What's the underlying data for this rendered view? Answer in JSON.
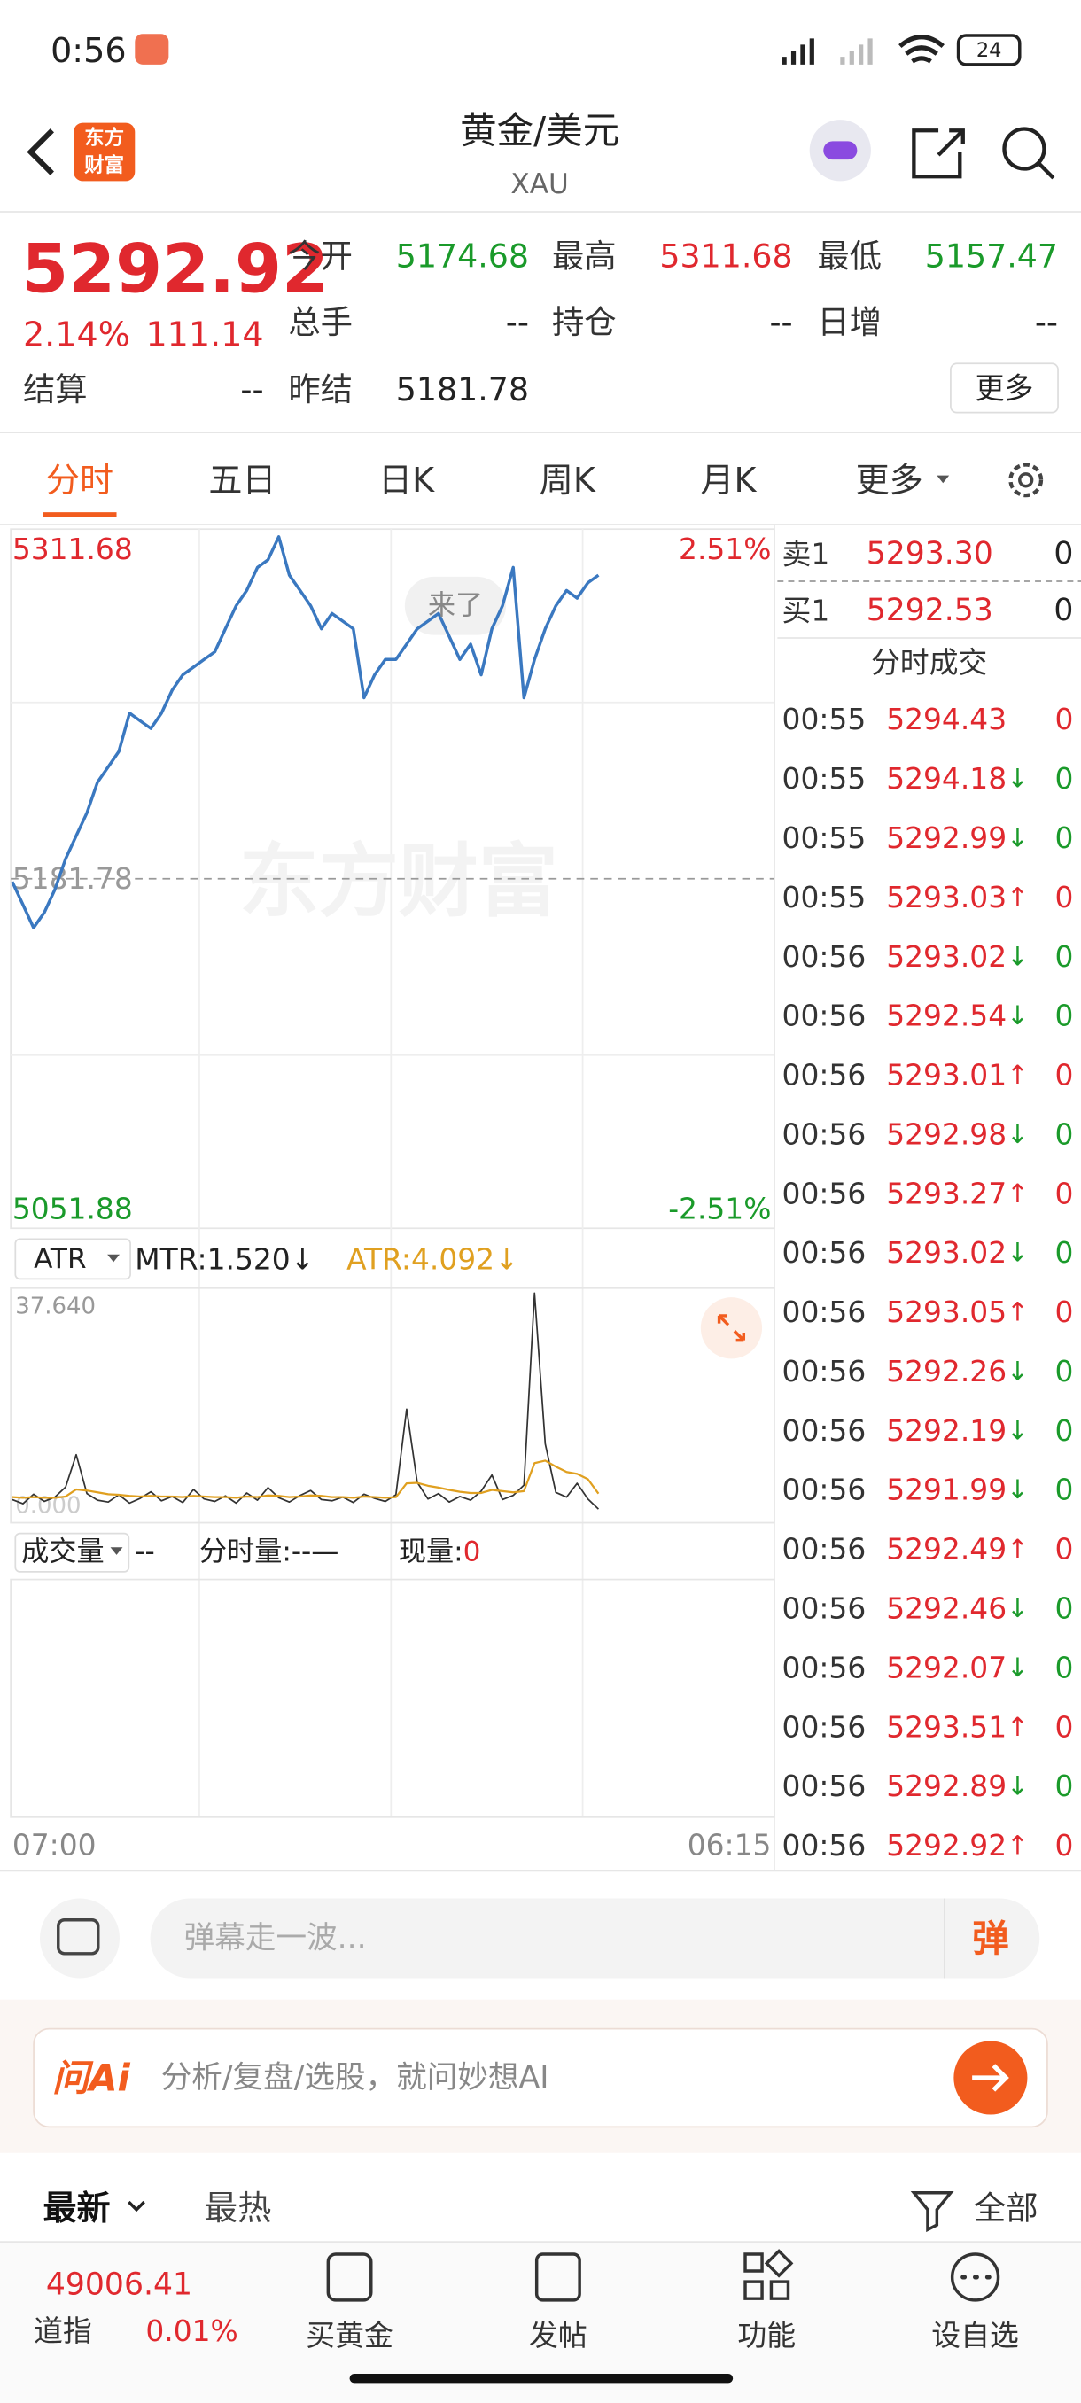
{
  "status_bar": {
    "time": "0:56",
    "battery": "24"
  },
  "header": {
    "logo_lines": [
      "东方",
      "财富"
    ],
    "title": "黄金/美元",
    "subtitle": "XAU"
  },
  "quote": {
    "price": "5292.92",
    "change_pct": "2.14%",
    "change": "111.14",
    "fields": [
      {
        "label": "今开",
        "value": "5174.68",
        "color": "#1a9a2a"
      },
      {
        "label": "最高",
        "value": "5311.68",
        "color": "#e0282e"
      },
      {
        "label": "最低",
        "value": "5157.47",
        "color": "#1a9a2a"
      },
      {
        "label": "总手",
        "value": "--",
        "color": "#222"
      },
      {
        "label": "持仓",
        "value": "--",
        "color": "#222"
      },
      {
        "label": "日增",
        "value": "--",
        "color": "#222"
      },
      {
        "label": "结算",
        "value": "--",
        "color": "#222"
      },
      {
        "label": "昨结",
        "value": "5181.78",
        "color": "#222"
      }
    ],
    "more": "更多"
  },
  "tabs": [
    "分时",
    "五日",
    "日K",
    "周K",
    "月K",
    "更多"
  ],
  "intraday": {
    "type": "line",
    "color": "#3a78c0",
    "watermark": "东方财富",
    "badge": "来了",
    "ylim": [
      5051.88,
      5311.68
    ],
    "yticks": [
      5311.68,
      5181.78,
      5051.88
    ],
    "right_labels": [
      "2.51%",
      "-2.51%"
    ],
    "xlim": [
      0,
      71.5
    ],
    "x_labels": [
      "07:00",
      "06:15"
    ],
    "values": [
      5180.64,
      5172.1,
      5163.55,
      5169.25,
      5177.79,
      5189.19,
      5197.73,
      5206.28,
      5217.67,
      5223.37,
      5229.07,
      5243.31,
      5240.46,
      5237.61,
      5243.31,
      5251.85,
      5257.55,
      5260.4,
      5263.25,
      5266.1,
      5274.64,
      5283.19,
      5288.88,
      5297.43,
      5300.28,
      5308.82,
      5294.58,
      5288.88,
      5283.19,
      5274.64,
      5280.34,
      5277.49,
      5274.64,
      5249.0,
      5257.55,
      5263.25,
      5263.25,
      5268.94,
      5274.64,
      5277.49,
      5280.34,
      5271.79,
      5263.25,
      5268.94,
      5257.55,
      5274.64,
      5283.19,
      5297.43,
      5249.0,
      5263.25,
      5274.64,
      5283.19,
      5288.88,
      5286.04,
      5291.73,
      5294.58
    ]
  },
  "indicator": {
    "type": "line",
    "name": "ATR",
    "legend": [
      "MTR:1.520↓",
      "ATR:4.092↓"
    ],
    "top_label": "37.640",
    "bottom_label": "0.000",
    "ylim": [
      0,
      37.64
    ],
    "series": [
      {
        "color": "#333333",
        "values": [
          3.1,
          2.4,
          4.0,
          2.8,
          3.5,
          5.2,
          10.6,
          4.1,
          3.0,
          2.7,
          3.9,
          2.5,
          3.3,
          4.4,
          2.9,
          3.6,
          2.6,
          4.8,
          3.2,
          2.8,
          3.7,
          2.5,
          4.2,
          3.0,
          5.1,
          3.4,
          2.7,
          3.8,
          4.6,
          3.1,
          2.9,
          3.5,
          2.6,
          4.0,
          3.3,
          2.8,
          3.9,
          18.2,
          6.0,
          3.2,
          4.1,
          2.7,
          3.6,
          3.0,
          4.5,
          7.2,
          3.1,
          3.8,
          5.5,
          37.6,
          12.4,
          4.3,
          3.5,
          5.8,
          3.2,
          1.52
        ]
      },
      {
        "color": "#e0a020",
        "values": [
          3.5,
          3.4,
          3.5,
          3.4,
          3.4,
          3.6,
          4.8,
          4.6,
          4.3,
          4.0,
          3.9,
          3.7,
          3.6,
          3.7,
          3.6,
          3.6,
          3.5,
          3.7,
          3.6,
          3.5,
          3.5,
          3.4,
          3.6,
          3.5,
          3.8,
          3.7,
          3.5,
          3.6,
          3.8,
          3.7,
          3.5,
          3.5,
          3.4,
          3.6,
          3.5,
          3.4,
          3.5,
          5.8,
          5.9,
          5.4,
          5.1,
          4.7,
          4.4,
          4.2,
          4.2,
          4.7,
          4.5,
          4.3,
          4.5,
          9.2,
          9.6,
          8.6,
          7.7,
          7.4,
          6.5,
          4.092
        ]
      }
    ]
  },
  "volume": {
    "name": "成交量",
    "value": "--",
    "period_label": "分时量:--—",
    "now_label": "现量:",
    "now_value": "0"
  },
  "order_book": {
    "asks": [
      {
        "label": "卖1",
        "price": "5293.30",
        "vol": "0"
      }
    ],
    "bids": [
      {
        "label": "买1",
        "price": "5292.53",
        "vol": "0"
      }
    ]
  },
  "trades": {
    "title": "分时成交",
    "rows": [
      {
        "time": "00:55",
        "price": "5294.43",
        "vol": "0"
      },
      {
        "time": "00:55",
        "price": "5294.18",
        "dir": "↓",
        "vol": "0"
      },
      {
        "time": "00:55",
        "price": "5292.99",
        "dir": "↓",
        "vol": "0"
      },
      {
        "time": "00:55",
        "price": "5293.03",
        "dir": "↑",
        "vol": "0"
      },
      {
        "time": "00:56",
        "price": "5293.02",
        "dir": "↓",
        "vol": "0"
      },
      {
        "time": "00:56",
        "price": "5292.54",
        "dir": "↓",
        "vol": "0"
      },
      {
        "time": "00:56",
        "price": "5293.01",
        "dir": "↑",
        "vol": "0"
      },
      {
        "time": "00:56",
        "price": "5292.98",
        "dir": "↓",
        "vol": "0"
      },
      {
        "time": "00:56",
        "price": "5293.27",
        "dir": "↑",
        "vol": "0"
      },
      {
        "time": "00:56",
        "price": "5293.02",
        "dir": "↓",
        "vol": "0"
      },
      {
        "time": "00:56",
        "price": "5293.05",
        "dir": "↑",
        "vol": "0"
      },
      {
        "time": "00:56",
        "price": "5292.26",
        "dir": "↓",
        "vol": "0"
      },
      {
        "time": "00:56",
        "price": "5292.19",
        "dir": "↓",
        "vol": "0"
      },
      {
        "time": "00:56",
        "price": "5291.99",
        "dir": "↓",
        "vol": "0"
      },
      {
        "time": "00:56",
        "price": "5292.49",
        "dir": "↑",
        "vol": "0"
      },
      {
        "time": "00:56",
        "price": "5292.46",
        "dir": "↓",
        "vol": "0"
      },
      {
        "time": "00:56",
        "price": "5292.07",
        "dir": "↓",
        "vol": "0"
      },
      {
        "time": "00:56",
        "price": "5293.51",
        "dir": "↑",
        "vol": "0"
      },
      {
        "time": "00:56",
        "price": "5292.89",
        "dir": "↓",
        "vol": "0"
      },
      {
        "time": "00:56",
        "price": "5292.92",
        "dir": "↑",
        "vol": "0"
      }
    ]
  },
  "comment_bar": {
    "placeholder": "弹幕走一波...",
    "button": "弹"
  },
  "ai_bar": {
    "brand": "问Ai",
    "placeholder": "分析/复盘/选股，就问妙想AI"
  },
  "feed_tabs": {
    "tabs": [
      "最新",
      "最热"
    ],
    "filter": "全部"
  },
  "bottom_nav": {
    "index": {
      "value": "49006.41",
      "name": "道指",
      "change": "0.01%"
    },
    "items": [
      "买黄金",
      "发帖",
      "功能",
      "设自选"
    ]
  }
}
